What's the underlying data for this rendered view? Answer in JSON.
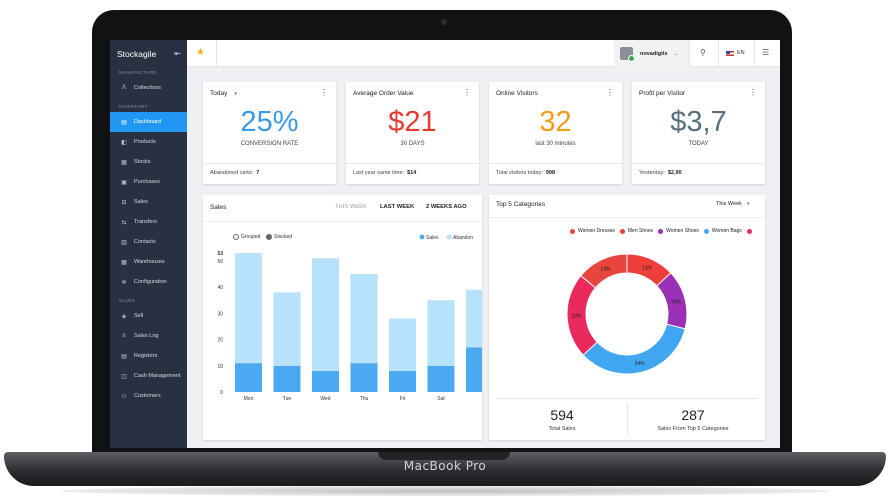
{
  "device": {
    "brand_label": "MacBook Pro"
  },
  "app": {
    "name": "Stockagile"
  },
  "sidebar": {
    "sections": [
      {
        "label": "MANUFACTURE",
        "items": [
          {
            "label": "Collections",
            "icon": "collections-icon",
            "glyph": "Ʌ"
          }
        ]
      },
      {
        "label": "INVENTORY",
        "items": [
          {
            "label": "Dashboard",
            "icon": "dashboard-icon",
            "glyph": "▤",
            "active": true
          },
          {
            "label": "Products",
            "icon": "products-icon",
            "glyph": "◧"
          },
          {
            "label": "Stocks",
            "icon": "stocks-icon",
            "glyph": "▦"
          },
          {
            "label": "Purchases",
            "icon": "purchases-icon",
            "glyph": "▣"
          },
          {
            "label": "Sales",
            "icon": "sales-icon",
            "glyph": "⊟"
          },
          {
            "label": "Transfers",
            "icon": "transfers-icon",
            "glyph": "⇆"
          },
          {
            "label": "Contacts",
            "icon": "contacts-icon",
            "glyph": "▥"
          },
          {
            "label": "Warehouses",
            "icon": "warehouses-icon",
            "glyph": "▦"
          },
          {
            "label": "Configuration",
            "icon": "gear-icon",
            "glyph": "✲"
          }
        ]
      },
      {
        "label": "SALES",
        "items": [
          {
            "label": "Sell",
            "icon": "sell-icon",
            "glyph": "◈"
          },
          {
            "label": "Sales Log",
            "icon": "sales-log-icon",
            "glyph": "≡"
          },
          {
            "label": "Registers",
            "icon": "registers-icon",
            "glyph": "▤"
          },
          {
            "label": "Cash Management",
            "icon": "cash-icon",
            "glyph": "◫"
          },
          {
            "label": "Customers",
            "icon": "customers-icon",
            "glyph": "⚇"
          }
        ]
      }
    ]
  },
  "topbar": {
    "username": "novadigits",
    "language": "EN"
  },
  "kpis": [
    {
      "title": "Today",
      "has_caret": true,
      "value": "25%",
      "color": "#3a9ae8",
      "subtitle": "CONVERSION RATE",
      "footer_label": "Abandoned carts:",
      "footer_value": "7"
    },
    {
      "title": "Average Order Value",
      "has_caret": false,
      "value": "$21",
      "color": "#e53a2f",
      "subtitle": "30 DAYS",
      "footer_label": "Last year same time:",
      "footer_value": "$14"
    },
    {
      "title": "Online Visitors",
      "has_caret": false,
      "value": "32",
      "color": "#f39b1a",
      "subtitle": "last 30 minutes",
      "footer_label": "Total visitors today:",
      "footer_value": "998"
    },
    {
      "title": "Profit per Visitor",
      "has_caret": false,
      "value": "$3,7",
      "color": "#55707e",
      "subtitle": "TODAY",
      "footer_label": "Yesterday:",
      "footer_value": "$2,90"
    }
  ],
  "sales_card": {
    "title": "Sales",
    "tabs": [
      {
        "label": "THIS WEEK",
        "active": false
      },
      {
        "label": "LAST WEEK",
        "active": true
      },
      {
        "label": "2 WEEKS AGO",
        "active": true
      }
    ],
    "options": [
      {
        "label": "Grouped",
        "selected": false
      },
      {
        "label": "Stacked",
        "selected": true
      }
    ]
  },
  "top5_card": {
    "title": "Top 5 Categories",
    "period": "This Week",
    "stats": [
      {
        "value": "594",
        "label": "Total Sales"
      },
      {
        "value": "287",
        "label": "Sales From Top 5 Categories"
      }
    ]
  },
  "chart_data": [
    {
      "type": "bar",
      "stacked": true,
      "categories": [
        "Mon",
        "Tue",
        "Wed",
        "Thu",
        "Fri",
        "Sat",
        "Sun"
      ],
      "series": [
        {
          "name": "Sales",
          "color": "#4aa9f0",
          "values": [
            11,
            10,
            8,
            11,
            8,
            10,
            17
          ]
        },
        {
          "name": "Abandoned",
          "color": "#b7e2fb",
          "values": [
            42,
            28,
            43,
            34,
            20,
            25,
            22
          ]
        }
      ],
      "y_ticks": [
        0,
        10,
        20,
        30,
        40,
        50,
        53
      ],
      "ylim": [
        0,
        53
      ],
      "legend": "top-right",
      "legend_visible_text": [
        "Sales",
        "Abandon"
      ]
    },
    {
      "type": "pie",
      "donut": true,
      "slices": [
        {
          "name": "Women Dresses",
          "value": 14,
          "label": "14%",
          "color": "#e8453c"
        },
        {
          "name": "Men Shoes",
          "value": 13,
          "label": "13%",
          "color": "#ee3e3a"
        },
        {
          "name": "Women Shoes",
          "value": 16,
          "label": "16%",
          "color": "#9b2fb5"
        },
        {
          "name": "Women Bags",
          "value": 34,
          "label": "34%",
          "color": "#40a6f1"
        },
        {
          "name": "",
          "value": 23,
          "label": "23%",
          "color": "#ea2a5c"
        }
      ],
      "legend": "top"
    }
  ]
}
